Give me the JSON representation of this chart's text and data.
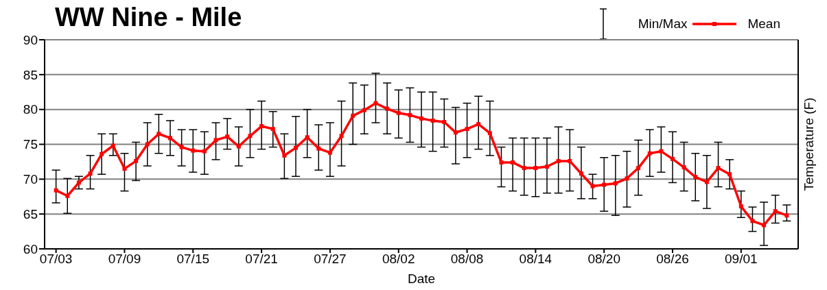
{
  "chart_data": {
    "type": "line",
    "title": "WW Nine - Mile",
    "xlabel": "Date",
    "ylabel": "Temperature (F)",
    "x": [
      "--07-03",
      "--07-04",
      "--07-05",
      "--07-06",
      "--07-07",
      "--07-08",
      "--07-09",
      "--07-10",
      "--07-11",
      "--07-12",
      "--07-13",
      "--07-14",
      "--07-15",
      "--07-16",
      "--07-17",
      "--07-18",
      "--07-19",
      "--07-20",
      "--07-21",
      "--07-22",
      "--07-23",
      "--07-24",
      "--07-25",
      "--07-26",
      "--07-27",
      "--07-28",
      "--07-29",
      "--07-30",
      "--07-31",
      "--08-01",
      "--08-02",
      "--08-03",
      "--08-04",
      "--08-05",
      "--08-06",
      "--08-07",
      "--08-08",
      "--08-09",
      "--08-10",
      "--08-11",
      "--08-12",
      "--08-13",
      "--08-14",
      "--08-15",
      "--08-16",
      "--08-17",
      "--08-18",
      "--08-19",
      "--08-20",
      "--08-21",
      "--08-22",
      "--08-23",
      "--08-24",
      "--08-25",
      "--08-26",
      "--08-27",
      "--08-28",
      "--08-29",
      "--08-30",
      "--08-31",
      "--09-01",
      "--09-02",
      "--09-03",
      "--09-04",
      "--09-05"
    ],
    "series": [
      {
        "name": "Mean",
        "color": "#ff0000",
        "values": [
          68.4,
          67.6,
          69.5,
          70.8,
          73.6,
          74.8,
          71.5,
          72.6,
          75.0,
          76.5,
          75.9,
          74.6,
          74.1,
          74.0,
          75.6,
          76.1,
          74.7,
          76.2,
          77.6,
          77.2,
          73.4,
          74.5,
          76.0,
          74.4,
          73.8,
          76.2,
          79.1,
          79.9,
          80.9,
          80.1,
          79.5,
          79.2,
          78.7,
          78.4,
          78.2,
          76.7,
          77.2,
          77.9,
          76.6,
          72.4,
          72.4,
          71.6,
          71.6,
          71.8,
          72.6,
          72.6,
          70.8,
          69.0,
          69.2,
          69.4,
          70.1,
          71.6,
          73.7,
          74.0,
          72.9,
          71.7,
          70.3,
          69.6,
          71.6,
          70.7,
          66.1,
          64.0,
          63.4,
          65.4,
          64.8
        ],
        "errors": [
          [
            66.6,
            71.3
          ],
          [
            65.1,
            70.1
          ],
          [
            68.6,
            70.4
          ],
          [
            68.6,
            73.4
          ],
          [
            70.7,
            76.5
          ],
          [
            73.4,
            76.5
          ],
          [
            68.3,
            73.7
          ],
          [
            69.8,
            75.3
          ],
          [
            71.9,
            78.1
          ],
          [
            73.7,
            79.3
          ],
          [
            73.4,
            78.4
          ],
          [
            71.9,
            77.1
          ],
          [
            71.0,
            77.1
          ],
          [
            70.7,
            76.8
          ],
          [
            72.8,
            78.1
          ],
          [
            74.3,
            78.7
          ],
          [
            71.9,
            77.5
          ],
          [
            73.1,
            80.0
          ],
          [
            74.3,
            81.2
          ],
          [
            74.6,
            79.7
          ],
          [
            70.1,
            76.5
          ],
          [
            70.4,
            79.0
          ],
          [
            73.1,
            80.0
          ],
          [
            71.3,
            77.8
          ],
          [
            70.4,
            78.1
          ],
          [
            71.9,
            81.2
          ],
          [
            75.0,
            83.8
          ],
          [
            76.5,
            83.5
          ],
          [
            78.1,
            85.2
          ],
          [
            76.5,
            83.8
          ],
          [
            75.9,
            82.8
          ],
          [
            75.3,
            83.1
          ],
          [
            74.6,
            82.5
          ],
          [
            74.0,
            82.5
          ],
          [
            74.6,
            81.5
          ],
          [
            72.2,
            80.3
          ],
          [
            73.1,
            80.9
          ],
          [
            74.3,
            81.9
          ],
          [
            73.4,
            81.2
          ],
          [
            68.9,
            74.6
          ],
          [
            68.3,
            75.9
          ],
          [
            67.7,
            75.9
          ],
          [
            67.5,
            75.9
          ],
          [
            68.0,
            75.9
          ],
          [
            68.0,
            77.5
          ],
          [
            68.3,
            77.1
          ],
          [
            67.2,
            74.6
          ],
          [
            67.2,
            70.7
          ],
          [
            65.4,
            73.1
          ],
          [
            64.8,
            73.4
          ],
          [
            66.0,
            74.0
          ],
          [
            67.7,
            75.6
          ],
          [
            70.4,
            77.1
          ],
          [
            71.0,
            77.5
          ],
          [
            69.5,
            76.8
          ],
          [
            68.3,
            75.3
          ],
          [
            66.9,
            73.7
          ],
          [
            65.8,
            73.4
          ],
          [
            68.9,
            75.3
          ],
          [
            68.6,
            72.8
          ],
          [
            64.5,
            68.3
          ],
          [
            62.5,
            66.0
          ],
          [
            60.5,
            66.7
          ],
          [
            63.7,
            67.7
          ],
          [
            64.0,
            66.3
          ]
        ]
      }
    ],
    "xlim": [
      "--07-02",
      "--09-06"
    ],
    "ylim": [
      60,
      90
    ],
    "yticks": [
      60,
      65,
      70,
      75,
      80,
      85,
      90
    ],
    "xticks": [
      {
        "value": "--07-03",
        "label": "07/03"
      },
      {
        "value": "--07-09",
        "label": "07/09"
      },
      {
        "value": "--07-15",
        "label": "07/15"
      },
      {
        "value": "--07-21",
        "label": "07/21"
      },
      {
        "value": "--07-27",
        "label": "07/27"
      },
      {
        "value": "--08-02",
        "label": "08/02"
      },
      {
        "value": "--08-08",
        "label": "08/08"
      },
      {
        "value": "--08-14",
        "label": "08/14"
      },
      {
        "value": "--08-20",
        "label": "08/20"
      },
      {
        "value": "--08-26",
        "label": "08/26"
      },
      {
        "value": "--09-01",
        "label": "09/01"
      }
    ],
    "annotations": [
      "Min/Max"
    ],
    "grid": "y",
    "legend": "top right",
    "marker": "square",
    "line_style": "solid"
  }
}
